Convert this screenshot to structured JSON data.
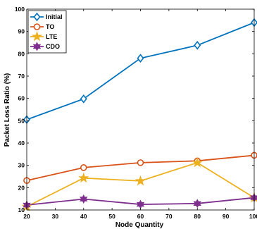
{
  "chart_data": {
    "type": "line",
    "xlabel": "Node Quantity",
    "ylabel": "Packet Loss Ratio (%)",
    "x": [
      20,
      40,
      60,
      80,
      100
    ],
    "xlim": [
      20,
      100
    ],
    "ylim": [
      10,
      100
    ],
    "xticks": [
      20,
      30,
      40,
      50,
      60,
      70,
      80,
      90,
      100
    ],
    "yticks": [
      10,
      20,
      30,
      40,
      50,
      60,
      70,
      80,
      90,
      100
    ],
    "grid": false,
    "legend_position": "top-left",
    "series": [
      {
        "name": "Initial",
        "color": "#0072BD",
        "marker": "diamond",
        "values": [
          50.5,
          59.8,
          78.0,
          83.8,
          94.0
        ]
      },
      {
        "name": "TO",
        "color": "#D95319",
        "marker": "circle",
        "values": [
          23.2,
          29.0,
          31.2,
          32.0,
          34.5
        ]
      },
      {
        "name": "LTE",
        "color": "#EDB120",
        "marker": "star",
        "values": [
          11.5,
          24.3,
          23.0,
          31.2,
          15.5
        ]
      },
      {
        "name": "CDO",
        "color": "#7E2F8E",
        "marker": "hexagram",
        "values": [
          12.2,
          14.9,
          12.5,
          12.9,
          15.5
        ]
      }
    ]
  }
}
